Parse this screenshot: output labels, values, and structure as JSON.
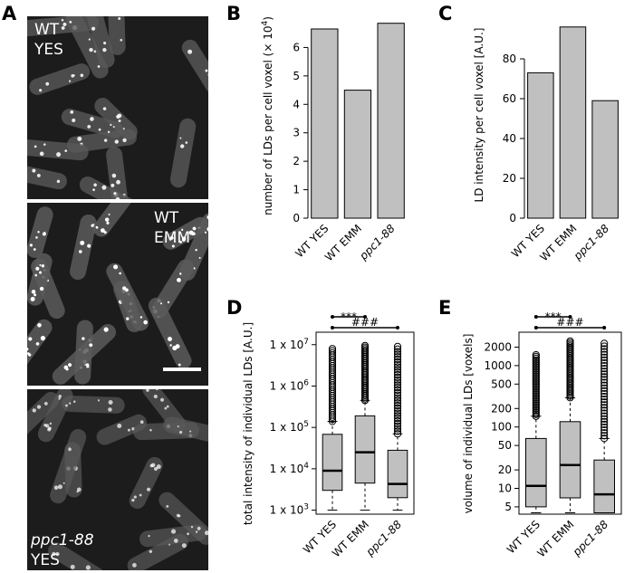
{
  "panel_labels": [
    "A",
    "B",
    "C",
    "D",
    "E"
  ],
  "micrographs": [
    {
      "line1": "WT",
      "line2": "YES",
      "italic_line1": false
    },
    {
      "line1": "WT",
      "line2": "EMM",
      "italic_line1": false,
      "scale_bar": true
    },
    {
      "line1": "ppc1-88",
      "line2": "YES",
      "italic_line1": true
    }
  ],
  "colors": {
    "bar_fill": "#c0c0c0",
    "box_fill": "#c0c0c0",
    "axis": "#000000",
    "micro_bg": "#1c1c1c",
    "cell": "#5a5a5a",
    "spot": "#ffffff"
  },
  "chart_data": [
    {
      "panel": "B",
      "type": "bar",
      "categories": [
        "WT YES",
        "WT EMM",
        "ppc1-88"
      ],
      "italic_categories": [
        false,
        false,
        true
      ],
      "values": [
        6.65,
        4.5,
        6.85
      ],
      "ylabel": "number of LDs per cell voxel (× 10",
      "ylabel_exp": "4",
      "ylabel_end": ")",
      "ylim": [
        0,
        7
      ],
      "yticks": [
        0,
        1,
        2,
        3,
        4,
        5,
        6
      ]
    },
    {
      "panel": "C",
      "type": "bar",
      "categories": [
        "WT YES",
        "WT EMM",
        "ppc1-88"
      ],
      "italic_categories": [
        false,
        false,
        true
      ],
      "values": [
        73,
        96,
        59
      ],
      "ylabel": "LD intensity per cell voxel [A.U.]",
      "ylim": [
        0,
        100
      ],
      "yticks": [
        0,
        20,
        40,
        60,
        80
      ]
    },
    {
      "panel": "D",
      "type": "box",
      "scale": "log",
      "categories": [
        "WT YES",
        "WT EMM",
        "ppc1-88"
      ],
      "italic_categories": [
        false,
        false,
        true
      ],
      "ylabel": "total intensity of individual LDs [A.U.]",
      "ylim": [
        800,
        20000000
      ],
      "yticks": [
        {
          "value": 1000,
          "base": "1 x 10",
          "exp": "3"
        },
        {
          "value": 10000,
          "base": "1 x 10",
          "exp": "4"
        },
        {
          "value": 100000,
          "base": "1 x 10",
          "exp": "5"
        },
        {
          "value": 1000000,
          "base": "1 x 10",
          "exp": "6"
        },
        {
          "value": 10000000,
          "base": "1 x 10",
          "exp": "7"
        }
      ],
      "boxes": [
        {
          "whislo": 1000,
          "q1": 3000,
          "med": 9000,
          "q3": 68000,
          "whishi": 140000,
          "flier_lo": 140000,
          "flier_hi": 8000000
        },
        {
          "whislo": 1000,
          "q1": 4500,
          "med": 25000,
          "q3": 190000,
          "whishi": 450000,
          "flier_lo": 450000,
          "flier_hi": 9500000
        },
        {
          "whislo": 1000,
          "q1": 2000,
          "med": 4300,
          "q3": 28000,
          "whishi": 70000,
          "flier_lo": 70000,
          "flier_hi": 9000000
        }
      ],
      "significance": [
        {
          "from": 0,
          "to": 1,
          "label": "***"
        },
        {
          "from": 0,
          "to": 2,
          "label": "###"
        }
      ]
    },
    {
      "panel": "E",
      "type": "box",
      "scale": "log",
      "categories": [
        "WT YES",
        "WT EMM",
        "ppc1-88"
      ],
      "italic_categories": [
        false,
        false,
        true
      ],
      "ylabel": "volume of individual LDs [voxels]",
      "ylim": [
        3.8,
        3500
      ],
      "yticks": [
        {
          "value": 5,
          "label": "5"
        },
        {
          "value": 10,
          "label": "10"
        },
        {
          "value": 20,
          "label": "20"
        },
        {
          "value": 50,
          "label": "50"
        },
        {
          "value": 100,
          "label": "100"
        },
        {
          "value": 200,
          "label": "200"
        },
        {
          "value": 500,
          "label": "500"
        },
        {
          "value": 1000,
          "label": "1000"
        },
        {
          "value": 2000,
          "label": "2000"
        }
      ],
      "boxes": [
        {
          "whislo": 4,
          "q1": 5,
          "med": 11,
          "q3": 65,
          "whishi": 150,
          "flier_lo": 150,
          "flier_hi": 1500
        },
        {
          "whislo": 4,
          "q1": 7,
          "med": 24,
          "q3": 122,
          "whishi": 300,
          "flier_lo": 300,
          "flier_hi": 2500
        },
        {
          "whislo": 4,
          "q1": 4,
          "med": 8,
          "q3": 29,
          "whishi": 65,
          "flier_lo": 65,
          "flier_hi": 2300
        }
      ],
      "significance": [
        {
          "from": 0,
          "to": 1,
          "label": "***"
        },
        {
          "from": 0,
          "to": 2,
          "label": "###"
        }
      ]
    }
  ]
}
